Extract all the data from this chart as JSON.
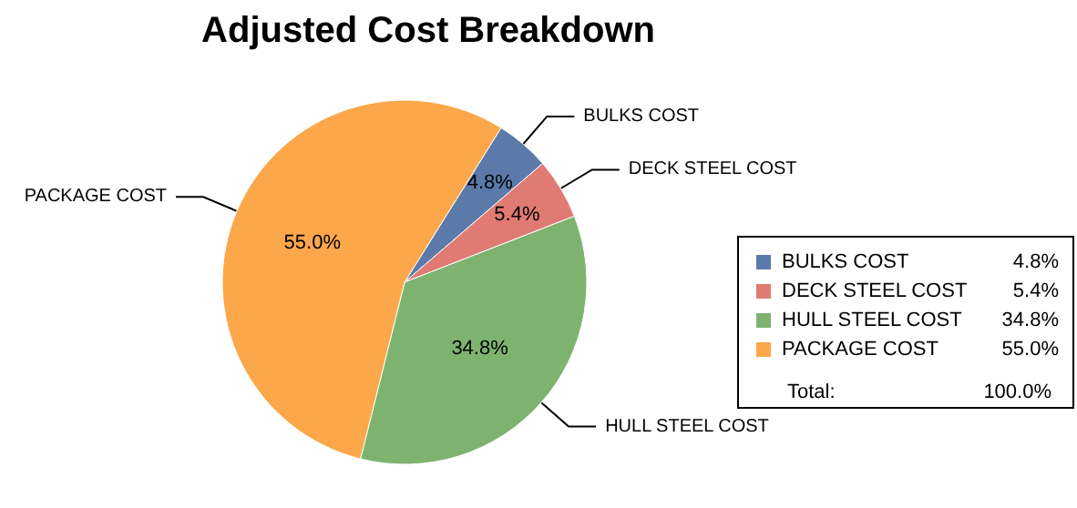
{
  "chart_data": {
    "type": "pie",
    "title": "Adjusted Cost Breakdown",
    "categories": [
      "BULKS COST",
      "DECK STEEL COST",
      "HULL STEEL COST",
      "PACKAGE COST"
    ],
    "values": [
      4.8,
      5.4,
      34.8,
      55.0
    ],
    "value_labels": [
      "4.8%",
      "5.4%",
      "34.8%",
      "55.0%"
    ],
    "colors": [
      "#5b7aa9",
      "#e07b73",
      "#7db36f",
      "#fba74a"
    ],
    "legend": "right",
    "annotations": [
      "Total:",
      "100.0%"
    ]
  }
}
